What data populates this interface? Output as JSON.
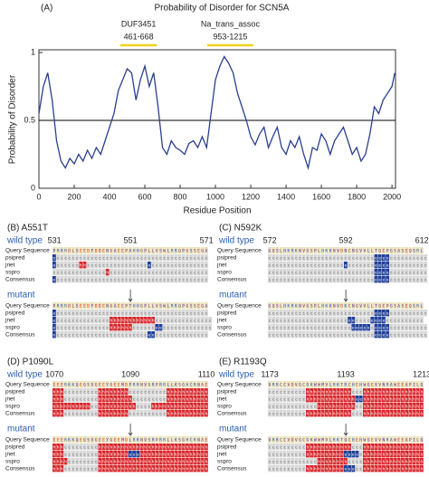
{
  "chart_data": {
    "type": "line",
    "label": "(A)",
    "title": "Probability of Disorder for SCN5A",
    "xlabel": "Residue Position",
    "ylabel": "Probability of Disorder",
    "x": [
      0,
      25,
      50,
      75,
      100,
      125,
      150,
      175,
      200,
      225,
      250,
      275,
      300,
      325,
      350,
      375,
      400,
      425,
      450,
      475,
      500,
      525,
      550,
      575,
      600,
      625,
      650,
      675,
      700,
      725,
      750,
      775,
      800,
      825,
      850,
      875,
      900,
      925,
      950,
      975,
      1000,
      1025,
      1050,
      1075,
      1100,
      1125,
      1150,
      1175,
      1200,
      1225,
      1250,
      1275,
      1300,
      1325,
      1350,
      1375,
      1400,
      1425,
      1450,
      1475,
      1500,
      1525,
      1550,
      1575,
      1600,
      1625,
      1650,
      1675,
      1700,
      1725,
      1750,
      1775,
      1800,
      1825,
      1850,
      1875,
      1900,
      1925,
      1950,
      1975,
      2000,
      2016
    ],
    "values": [
      0.55,
      0.75,
      0.85,
      0.65,
      0.35,
      0.2,
      0.15,
      0.22,
      0.18,
      0.25,
      0.2,
      0.28,
      0.22,
      0.3,
      0.25,
      0.35,
      0.45,
      0.55,
      0.72,
      0.8,
      0.88,
      0.85,
      0.65,
      0.8,
      0.9,
      0.75,
      0.85,
      0.6,
      0.3,
      0.25,
      0.35,
      0.3,
      0.28,
      0.25,
      0.33,
      0.35,
      0.3,
      0.38,
      0.3,
      0.55,
      0.8,
      0.9,
      0.97,
      0.92,
      0.85,
      0.7,
      0.6,
      0.5,
      0.38,
      0.32,
      0.4,
      0.45,
      0.3,
      0.38,
      0.45,
      0.3,
      0.25,
      0.35,
      0.3,
      0.38,
      0.25,
      0.15,
      0.3,
      0.28,
      0.4,
      0.35,
      0.25,
      0.35,
      0.4,
      0.45,
      0.35,
      0.25,
      0.3,
      0.2,
      0.25,
      0.4,
      0.6,
      0.55,
      0.65,
      0.7,
      0.75,
      0.85
    ],
    "color": "#2b3f8f",
    "threshold": 0.5,
    "xlim": [
      0,
      2020
    ],
    "ylim": [
      0,
      1.02
    ],
    "xticks": [
      0,
      200,
      400,
      600,
      800,
      1000,
      1200,
      1400,
      1600,
      1800,
      2000
    ],
    "yticks": [
      0,
      0.5,
      1
    ],
    "domains": [
      {
        "name": "DUF3451",
        "range": "461-668",
        "start": 461,
        "end": 668,
        "color": "#f2d21b"
      },
      {
        "name": "Na_trans_assoc",
        "range": "953-1215",
        "start": 953,
        "end": 1215,
        "color": "#f2d21b"
      }
    ]
  },
  "row_labels": [
    "Query Sequence",
    "psipred",
    "jnet",
    "sspro",
    "Consensus"
  ],
  "panels": [
    {
      "title": "(B) A551T",
      "wt_label": "wild type",
      "mutant_label": "mutant",
      "positions": [
        531,
        551,
        571
      ],
      "wild_type": {
        "query": "PRRRDLSEEDFDDENGAEEPAHHGPLLVSWLRRQPGSSEQA",
        "psipred": "ecccccccccccccccccccccccccccccccccccccccc",
        "jnet": "ecccccchhcccccccccccccccceccccccccccccccc",
        "sspro": "cccccccccccccchcccccccccccccccccccccccccc",
        "consensus": "ecccccccccccccccccccccccccccccccccccccccc"
      },
      "mutant": {
        "query": "PRRRDLSEEDFDDENGAEEPTHHGPLLVSWLRRQPGSSEQA",
        "psipred": "ecccccccccccccccccccccccccccccccccccccccc",
        "jnet": "ecccccccccccccchhhhhhhhhhhhccccccccccccccc",
        "sspro": "ecccccccccccccchhhhhhcccccceeccccccccccccc",
        "consensus": "ecccccccccccccccccccccccceecccccccccccccc"
      }
    },
    {
      "title": "(C) N592K",
      "wt_label": "wild type",
      "mutant_label": "mutant",
      "positions": [
        572,
        592,
        612
      ],
      "wild_type": {
        "query": "GQSLHKRKNVGSPLHKKNVDNCNGVVLLTQEPGSASEQSRL",
        "psipred": "cccccccccccccccccccccccccccceeeecccccccccc",
        "jnet": "cccccccccccccccccccceccccccceeeecccccccccc",
        "sspro": "cccccccccccccccccccccccccccceeeecccccccccc",
        "consensus": "cccccccccccccccccccccccccccceeeecccccccccc"
      },
      "mutant": {
        "query": "GQSLHKRKNVGSPLHKKNVDKCNGVVLLTQEPGSASEQSRL",
        "psipred": "cccccccccccccccccccccccccccceeeecccccccccc",
        "jnet": "ccccccccccccccccccccceecccceeeecccccccccc",
        "sspro": "cccccccccccccccccccccceeeeeceeeecccccccccc",
        "consensus": "cccccccccccccccccccccccccccceeeecccccccccc"
      }
    },
    {
      "title": "(D) P1090L",
      "wt_label": "wild type",
      "mutant_label": "mutant",
      "positions": [
        1070,
        1090,
        1110
      ],
      "wild_type": {
        "query": "EEERKKQEGSVGEEYGEEMDPRRNVSRPRRLLKSGHCRNAE",
        "psipred": "hhhccccccccchhhhhhhhcccccccccchhhhhhhhhhh",
        "jnet": "hhhccccccccchhhhhhhhhccccccccchhhhhhhhhhh",
        "sspro": "hhhhhhhhhhcchhhhhhhhhhcccchhhhhhhhhhhhhhh",
        "consensus": "hhhccccccccchhhhhhhhcccccccccchhhhhhhhhhh"
      },
      "mutant": {
        "query": "EEERKKQEGSVGEEYGEEMDLRRNVSRPRRLLKSGHCRNAE",
        "psipred": "hhhccccccccchhhhhhhhhhhhhhhhhhhhhhhhhhhhh",
        "jnet": "hhhccccccccchhhhhhhheeehhhhhhhhhhhhhhhhhh",
        "sspro": "hhhhcccccccchhhhhhhhhhhhhhhhhhhhhhhhhhhhh",
        "consensus": "hhhccccccccchhhhhhhhhhhhhhhhhhhhhhhhhhhhh"
      }
    },
    {
      "title": "(E) R1193Q",
      "wt_label": "wild type",
      "mutant_label": "mutant",
      "positions": [
        1173,
        1193,
        1213
      ],
      "wild_type": {
        "query": "VRRCCVDVGCGKWWMVLRKTRCHEHWGEVVNRAWEEAPILQ",
        "psipred": "cccccccccchhhhhhhhhhhhccchhhhhhhhhhhhhhhh",
        "jnet": "cccccccccchhhhhhhhhhhhheehhhhhhhhhhhhhhhh",
        "sspro": "ccccccccccccchhhhhhhhhhcchhhhhhhhhhhhhhhh",
        "consensus": "cccccccccchhhhhhhhhhhhccchhhhhhhhhhhhhhhh"
      },
      "mutant": {
        "query": "VRRCCVDVGCGKWWMVLRKTQCHEHWGEVVNRAWEEAPILQ",
        "psipred": "cccccccccchhhhhhhhhhhhccchhhhhhhhhhhhhhhh",
        "jnet": "cccccccccchhhhhhhhhheeeechhhhhhhhhhhhhhhh",
        "sspro": "ccccccccccccchhhhhhhhcccchhhhhhhhhhhhhhhh",
        "consensus": "cccccccccchhhhhhhhhheeecchhhhhhhhhhhhhhhh"
      }
    }
  ]
}
